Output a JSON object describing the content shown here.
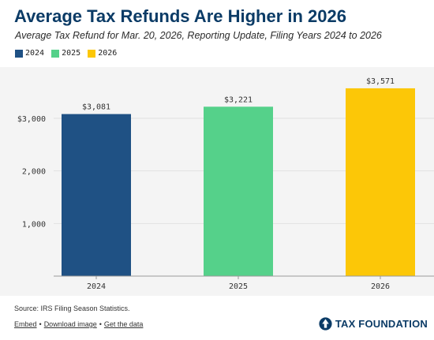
{
  "chart_data": {
    "type": "bar",
    "title": "Average Tax Refunds Are Higher in 2026",
    "subtitle": "Average Tax Refund for Mar. 20, 2026, Reporting Update, Filing Years 2024 to 2026",
    "categories": [
      "2024",
      "2025",
      "2026"
    ],
    "values": [
      3081,
      3221,
      3571
    ],
    "data_labels": [
      "$3,081",
      "$3,221",
      "$3,571"
    ],
    "colors": [
      "#1f5184",
      "#55d18a",
      "#fcc707"
    ],
    "legend": {
      "position": "top-left",
      "entries": [
        {
          "label": "2024",
          "color": "#1f5184"
        },
        {
          "label": "2025",
          "color": "#55d18a"
        },
        {
          "label": "2026",
          "color": "#fcc707"
        }
      ]
    },
    "y_ticks": [
      {
        "value": 1000,
        "label": "1,000"
      },
      {
        "value": 2000,
        "label": "2,000"
      },
      {
        "value": 3000,
        "label": "$3,000"
      }
    ],
    "ylim": [
      0,
      3750
    ],
    "grid": true,
    "xlabel": "",
    "ylabel": ""
  },
  "footer": {
    "source": "Source: IRS Filing Season Statistics.",
    "links": [
      "Embed",
      "Download image",
      "Get the data"
    ],
    "separator": "•",
    "brand": "TAX FOUNDATION",
    "brand_icon": "tax-foundation-logo-icon"
  }
}
